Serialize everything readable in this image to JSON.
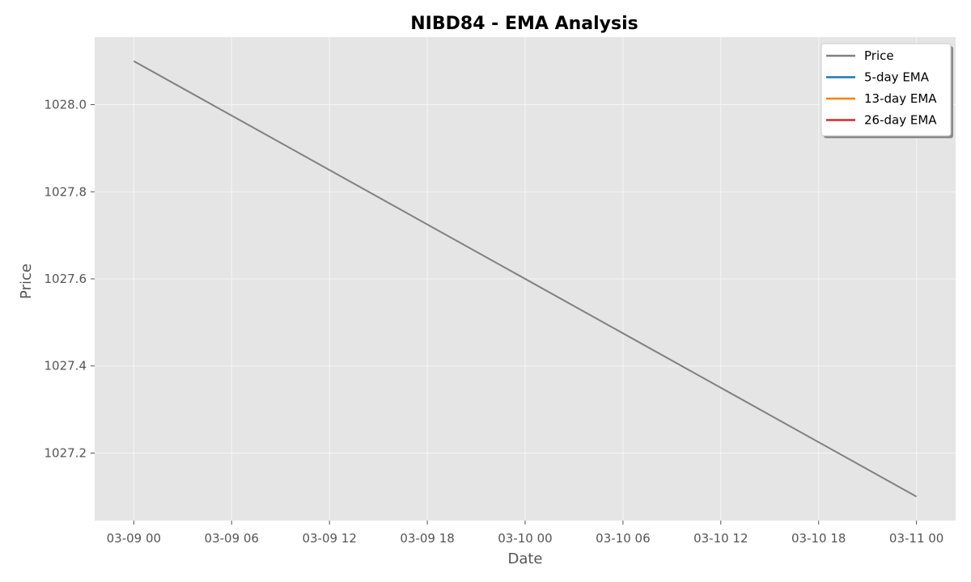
{
  "chart_data": {
    "type": "line",
    "title": "NIBD84 - EMA Analysis",
    "xlabel": "Date",
    "ylabel": "Price",
    "x_ticks": [
      "03-09 00",
      "03-09 06",
      "03-09 12",
      "03-09 18",
      "03-10 00",
      "03-10 06",
      "03-10 12",
      "03-10 18",
      "03-11 00"
    ],
    "y_ticks": [
      "1027.2",
      "1027.4",
      "1027.6",
      "1027.8",
      "1028.0"
    ],
    "y_tick_values": [
      1027.2,
      1027.4,
      1027.6,
      1027.8,
      1028.0
    ],
    "xlim": [
      "03-08 21:36",
      "03-11 02:24"
    ],
    "ylim": [
      1027.045,
      1028.155
    ],
    "grid": true,
    "legend_position": "top-right",
    "series": [
      {
        "name": "Price",
        "color": "#808080",
        "x": [
          "03-09 00",
          "03-11 00"
        ],
        "values": [
          1028.1,
          1027.1
        ]
      },
      {
        "name": "5-day EMA",
        "color": "#1f77b4",
        "x": [],
        "values": []
      },
      {
        "name": "13-day EMA",
        "color": "#ff7f0e",
        "x": [],
        "values": []
      },
      {
        "name": "26-day EMA",
        "color": "#d62728",
        "x": [],
        "values": []
      }
    ],
    "colors": {
      "plot_background": "#e5e5e5",
      "grid": "#f5f5f5"
    }
  }
}
